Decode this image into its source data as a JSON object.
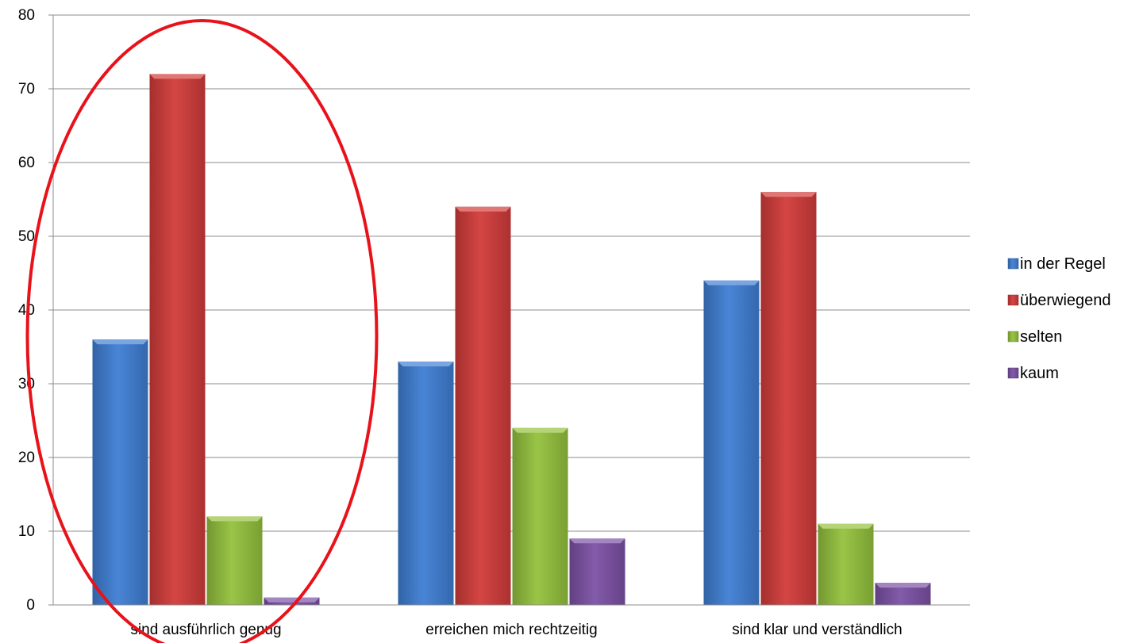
{
  "chart_data": {
    "type": "bar",
    "categories": [
      "sind ausführlich genug",
      "erreichen mich rechtzeitig",
      "sind klar und verständlich"
    ],
    "series": [
      {
        "name": "in der Regel",
        "values": [
          36,
          33,
          44
        ],
        "color": "#3f7fd4"
      },
      {
        "name": "überwiegend",
        "values": [
          72,
          54,
          56
        ],
        "color": "#d23c3a"
      },
      {
        "name": "selten",
        "values": [
          12,
          24,
          11
        ],
        "color": "#94c23d"
      },
      {
        "name": "kaum",
        "values": [
          1,
          9,
          3
        ],
        "color": "#7c52a6"
      }
    ],
    "ylim": [
      0,
      80
    ],
    "yticks": [
      0,
      10,
      20,
      30,
      40,
      50,
      60,
      70,
      80
    ],
    "grid": true,
    "legend": "right",
    "annotation": {
      "shape": "ellipse",
      "color": "#e8121a",
      "highlights": "sind ausführlich genug"
    }
  }
}
